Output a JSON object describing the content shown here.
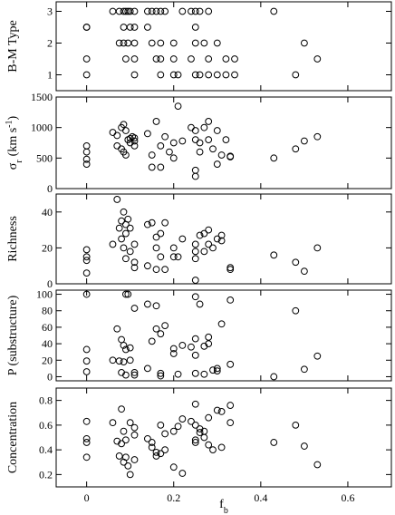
{
  "chart_data": [
    {
      "type": "scatter",
      "ylabel": "B-M Type",
      "ylim": [
        0.5,
        3.3
      ],
      "yticks": [
        1,
        2,
        3
      ],
      "xlim": [
        -0.07,
        0.7
      ],
      "xticks": [
        0,
        0.2,
        0.4,
        0.6
      ],
      "xticklabels_shown": false,
      "points": [
        [
          0,
          1
        ],
        [
          0,
          1.5
        ],
        [
          0,
          2.5
        ],
        [
          0,
          2.5
        ],
        [
          0.06,
          3
        ],
        [
          0.075,
          3
        ],
        [
          0.085,
          3
        ],
        [
          0.09,
          3
        ],
        [
          0.095,
          3
        ],
        [
          0.1,
          3
        ],
        [
          0.11,
          3
        ],
        [
          0.075,
          2
        ],
        [
          0.085,
          2
        ],
        [
          0.095,
          2
        ],
        [
          0.11,
          2
        ],
        [
          0.085,
          2.5
        ],
        [
          0.1,
          2.5
        ],
        [
          0.11,
          2.5
        ],
        [
          0.09,
          1.5
        ],
        [
          0.11,
          1.5
        ],
        [
          0.11,
          1
        ],
        [
          0.14,
          3
        ],
        [
          0.15,
          3
        ],
        [
          0.16,
          3
        ],
        [
          0.17,
          3
        ],
        [
          0.18,
          3
        ],
        [
          0.14,
          2.5
        ],
        [
          0.15,
          2
        ],
        [
          0.17,
          2
        ],
        [
          0.16,
          1.5
        ],
        [
          0.17,
          1.5
        ],
        [
          0.17,
          1
        ],
        [
          0.2,
          2
        ],
        [
          0.2,
          1.5
        ],
        [
          0.2,
          1
        ],
        [
          0.21,
          1
        ],
        [
          0.22,
          3
        ],
        [
          0.24,
          3
        ],
        [
          0.25,
          3
        ],
        [
          0.26,
          3
        ],
        [
          0.28,
          3
        ],
        [
          0.25,
          2.5
        ],
        [
          0.25,
          2
        ],
        [
          0.27,
          2
        ],
        [
          0.28,
          1.5
        ],
        [
          0.26,
          1
        ],
        [
          0.28,
          1
        ],
        [
          0.24,
          1.5
        ],
        [
          0.25,
          1
        ],
        [
          0.3,
          1
        ],
        [
          0.3,
          2
        ],
        [
          0.32,
          1
        ],
        [
          0.32,
          1.5
        ],
        [
          0.34,
          1.5
        ],
        [
          0.34,
          1
        ],
        [
          0.43,
          3
        ],
        [
          0.48,
          1
        ],
        [
          0.5,
          2
        ],
        [
          0.53,
          1.5
        ]
      ]
    },
    {
      "type": "scatter",
      "ylabel": "σr (km s-1)",
      "ylabel_main": "σ",
      "ylabel_sub": "r",
      "ylabel_unit": "(km s",
      "ylabel_sup": "-1",
      "ylabel_close": ")",
      "ylim": [
        0,
        1500
      ],
      "yticks": [
        0,
        500,
        1000,
        1500
      ],
      "xlim": [
        -0.07,
        0.7
      ],
      "xticks": [
        0,
        0.2,
        0.4,
        0.6
      ],
      "xticklabels_shown": false,
      "points": [
        [
          0,
          700
        ],
        [
          0,
          600
        ],
        [
          0,
          480
        ],
        [
          0,
          400
        ],
        [
          0.06,
          920
        ],
        [
          0.07,
          870
        ],
        [
          0.08,
          1000
        ],
        [
          0.08,
          650
        ],
        [
          0.085,
          600
        ],
        [
          0.09,
          550
        ],
        [
          0.09,
          950
        ],
        [
          0.095,
          800
        ],
        [
          0.1,
          750
        ],
        [
          0.105,
          850
        ],
        [
          0.11,
          830
        ],
        [
          0.11,
          780
        ],
        [
          0.11,
          700
        ],
        [
          0.085,
          1050
        ],
        [
          0.07,
          700
        ],
        [
          0.1,
          820
        ],
        [
          0.14,
          900
        ],
        [
          0.15,
          550
        ],
        [
          0.15,
          350
        ],
        [
          0.16,
          1100
        ],
        [
          0.17,
          700
        ],
        [
          0.17,
          350
        ],
        [
          0.18,
          850
        ],
        [
          0.19,
          600
        ],
        [
          0.2,
          500
        ],
        [
          0.2,
          750
        ],
        [
          0.21,
          1350
        ],
        [
          0.22,
          780
        ],
        [
          0.24,
          1000
        ],
        [
          0.25,
          950
        ],
        [
          0.25,
          800
        ],
        [
          0.25,
          300
        ],
        [
          0.25,
          200
        ],
        [
          0.26,
          750
        ],
        [
          0.26,
          600
        ],
        [
          0.27,
          1000
        ],
        [
          0.28,
          1100
        ],
        [
          0.28,
          800
        ],
        [
          0.29,
          650
        ],
        [
          0.3,
          950
        ],
        [
          0.3,
          400
        ],
        [
          0.31,
          550
        ],
        [
          0.32,
          800
        ],
        [
          0.33,
          520
        ],
        [
          0.33,
          530
        ],
        [
          0.43,
          500
        ],
        [
          0.48,
          650
        ],
        [
          0.5,
          780
        ],
        [
          0.53,
          850
        ]
      ]
    },
    {
      "type": "scatter",
      "ylabel": "Richness",
      "ylim": [
        0,
        50
      ],
      "yticks": [
        0,
        20,
        40
      ],
      "xlim": [
        -0.07,
        0.7
      ],
      "xticks": [
        0,
        0.2,
        0.4,
        0.6
      ],
      "xticklabels_shown": false,
      "points": [
        [
          0,
          19
        ],
        [
          0,
          15
        ],
        [
          0,
          13
        ],
        [
          0,
          6
        ],
        [
          0.06,
          22
        ],
        [
          0.07,
          47
        ],
        [
          0.075,
          31
        ],
        [
          0.08,
          35
        ],
        [
          0.08,
          25
        ],
        [
          0.085,
          20
        ],
        [
          0.09,
          33
        ],
        [
          0.09,
          28
        ],
        [
          0.09,
          14
        ],
        [
          0.095,
          36
        ],
        [
          0.1,
          31
        ],
        [
          0.1,
          18
        ],
        [
          0.11,
          22
        ],
        [
          0.11,
          12
        ],
        [
          0.11,
          9
        ],
        [
          0.085,
          40
        ],
        [
          0.14,
          33
        ],
        [
          0.14,
          10
        ],
        [
          0.15,
          34
        ],
        [
          0.16,
          26
        ],
        [
          0.16,
          20
        ],
        [
          0.16,
          8
        ],
        [
          0.17,
          28
        ],
        [
          0.17,
          15
        ],
        [
          0.18,
          34
        ],
        [
          0.18,
          8
        ],
        [
          0.2,
          20
        ],
        [
          0.2,
          15
        ],
        [
          0.21,
          15
        ],
        [
          0.22,
          25
        ],
        [
          0.25,
          22
        ],
        [
          0.25,
          18
        ],
        [
          0.25,
          14
        ],
        [
          0.25,
          2
        ],
        [
          0.26,
          27
        ],
        [
          0.27,
          28
        ],
        [
          0.27,
          18
        ],
        [
          0.28,
          30
        ],
        [
          0.28,
          22
        ],
        [
          0.29,
          20
        ],
        [
          0.3,
          25
        ],
        [
          0.31,
          27
        ],
        [
          0.31,
          24
        ],
        [
          0.33,
          9
        ],
        [
          0.33,
          8
        ],
        [
          0.43,
          16
        ],
        [
          0.48,
          12
        ],
        [
          0.5,
          7
        ],
        [
          0.53,
          20
        ]
      ]
    },
    {
      "type": "scatter",
      "ylabel": "P (substructure)",
      "ylim": [
        -5,
        105
      ],
      "yticks": [
        0,
        20,
        40,
        60,
        80,
        100
      ],
      "xlim": [
        -0.07,
        0.7
      ],
      "xticks": [
        0,
        0.2,
        0.4,
        0.6
      ],
      "xticklabels_shown": false,
      "points": [
        [
          0,
          100
        ],
        [
          0,
          33
        ],
        [
          0,
          19
        ],
        [
          0,
          6
        ],
        [
          0.06,
          20
        ],
        [
          0.07,
          58
        ],
        [
          0.075,
          19
        ],
        [
          0.08,
          45
        ],
        [
          0.08,
          5
        ],
        [
          0.085,
          38
        ],
        [
          0.09,
          100
        ],
        [
          0.09,
          33
        ],
        [
          0.09,
          2
        ],
        [
          0.095,
          100
        ],
        [
          0.1,
          35
        ],
        [
          0.1,
          20
        ],
        [
          0.11,
          83
        ],
        [
          0.11,
          5
        ],
        [
          0.11,
          2
        ],
        [
          0.085,
          18
        ],
        [
          0.14,
          88
        ],
        [
          0.14,
          10
        ],
        [
          0.15,
          43
        ],
        [
          0.16,
          86
        ],
        [
          0.16,
          58
        ],
        [
          0.17,
          52
        ],
        [
          0.17,
          4
        ],
        [
          0.17,
          1
        ],
        [
          0.18,
          62
        ],
        [
          0.2,
          34
        ],
        [
          0.2,
          28
        ],
        [
          0.21,
          3
        ],
        [
          0.22,
          38
        ],
        [
          0.24,
          36
        ],
        [
          0.25,
          97
        ],
        [
          0.25,
          46
        ],
        [
          0.25,
          26
        ],
        [
          0.25,
          4
        ],
        [
          0.26,
          88
        ],
        [
          0.27,
          37
        ],
        [
          0.27,
          3
        ],
        [
          0.28,
          48
        ],
        [
          0.28,
          40
        ],
        [
          0.29,
          8
        ],
        [
          0.3,
          10
        ],
        [
          0.3,
          7
        ],
        [
          0.31,
          64
        ],
        [
          0.33,
          93
        ],
        [
          0.33,
          15
        ],
        [
          0.43,
          0
        ],
        [
          0.48,
          80
        ],
        [
          0.5,
          9
        ],
        [
          0.53,
          25
        ]
      ]
    },
    {
      "type": "scatter",
      "ylabel": "Concentration",
      "ylim": [
        0.1,
        0.9
      ],
      "yticks": [
        0.2,
        0.4,
        0.6,
        0.8
      ],
      "xlim": [
        -0.07,
        0.7
      ],
      "xticks": [
        0,
        0.2,
        0.4,
        0.6
      ],
      "xticklabels": [
        "0",
        "0.2",
        "0.4",
        "0.6"
      ],
      "xticklabels_shown": true,
      "xlabel": "fb",
      "xlabel_main": "f",
      "xlabel_sub": "b",
      "points": [
        [
          0,
          0.63
        ],
        [
          0,
          0.49
        ],
        [
          0,
          0.46
        ],
        [
          0,
          0.34
        ],
        [
          0.06,
          0.62
        ],
        [
          0.07,
          0.47
        ],
        [
          0.075,
          0.35
        ],
        [
          0.08,
          0.73
        ],
        [
          0.08,
          0.45
        ],
        [
          0.085,
          0.3
        ],
        [
          0.09,
          0.48
        ],
        [
          0.09,
          0.34
        ],
        [
          0.095,
          0.27
        ],
        [
          0.1,
          0.2
        ],
        [
          0.1,
          0.62
        ],
        [
          0.11,
          0.58
        ],
        [
          0.11,
          0.52
        ],
        [
          0.11,
          0.32
        ],
        [
          0.085,
          0.55
        ],
        [
          0.14,
          0.49
        ],
        [
          0.15,
          0.46
        ],
        [
          0.15,
          0.42
        ],
        [
          0.16,
          0.38
        ],
        [
          0.16,
          0.35
        ],
        [
          0.17,
          0.6
        ],
        [
          0.17,
          0.37
        ],
        [
          0.18,
          0.4
        ],
        [
          0.18,
          0.53
        ],
        [
          0.2,
          0.26
        ],
        [
          0.2,
          0.55
        ],
        [
          0.21,
          0.59
        ],
        [
          0.22,
          0.21
        ],
        [
          0.22,
          0.65
        ],
        [
          0.24,
          0.63
        ],
        [
          0.25,
          0.77
        ],
        [
          0.25,
          0.6
        ],
        [
          0.25,
          0.48
        ],
        [
          0.25,
          0.46
        ],
        [
          0.26,
          0.57
        ],
        [
          0.26,
          0.54
        ],
        [
          0.27,
          0.5
        ],
        [
          0.27,
          0.55
        ],
        [
          0.28,
          0.66
        ],
        [
          0.28,
          0.44
        ],
        [
          0.29,
          0.4
        ],
        [
          0.3,
          0.72
        ],
        [
          0.31,
          0.71
        ],
        [
          0.31,
          0.42
        ],
        [
          0.33,
          0.76
        ],
        [
          0.33,
          0.62
        ],
        [
          0.43,
          0.46
        ],
        [
          0.48,
          0.6
        ],
        [
          0.5,
          0.43
        ],
        [
          0.53,
          0.28
        ]
      ]
    }
  ]
}
